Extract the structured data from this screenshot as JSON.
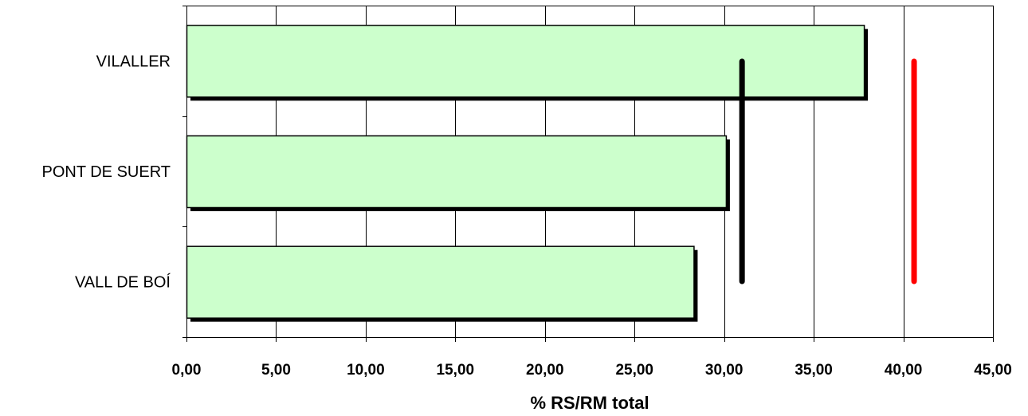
{
  "chart_data": {
    "type": "bar",
    "orientation": "horizontal",
    "categories": [
      "VILALLER",
      "PONT DE SUERT",
      "VALL DE BOÍ"
    ],
    "values": [
      37.8,
      30.1,
      28.3
    ],
    "xlabel": "% RS/RM total",
    "xlim": [
      0,
      45
    ],
    "x_ticks": [
      0,
      5,
      10,
      15,
      20,
      25,
      30,
      35,
      40,
      45
    ],
    "x_tick_labels": [
      "0,00",
      "5,00",
      "10,00",
      "15,00",
      "20,00",
      "25,00",
      "30,00",
      "35,00",
      "40,00",
      "45,00"
    ],
    "grid": "vertical",
    "reference_lines": [
      {
        "value": 31.0,
        "color": "#000000"
      },
      {
        "value": 40.6,
        "color": "#ff0000"
      }
    ],
    "colors": {
      "bar_fill": "#ccffcc",
      "bar_border": "#000000",
      "bar_shadow": "#000000",
      "gridline": "#000000"
    }
  }
}
